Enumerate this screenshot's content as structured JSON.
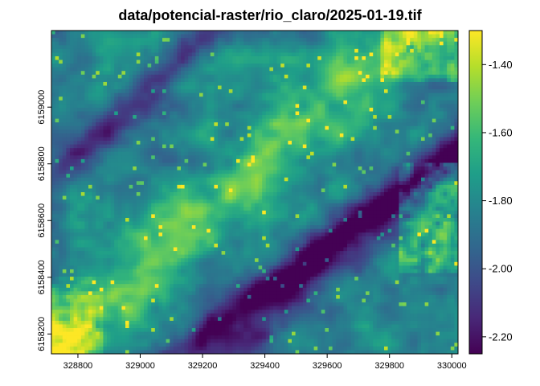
{
  "chart_data": {
    "type": "heatmap",
    "title": "data/potencial-raster/rio_claro/2025-01-19.tif",
    "xlabel": "",
    "ylabel": "",
    "xlim": [
      328715,
      330020
    ],
    "ylim": [
      6158130,
      6159270
    ],
    "x_ticks": [
      328800,
      329000,
      329200,
      329400,
      329600,
      329800,
      330000
    ],
    "y_ticks": [
      6158200,
      6158400,
      6158600,
      6158800,
      6159000
    ],
    "value_range": [
      -2.25,
      -1.3
    ],
    "legend": {
      "placement": "right",
      "ticks": [
        -1.4,
        -1.6,
        -1.8,
        -2.0,
        -2.2
      ],
      "tick_labels": [
        "-1.40",
        "-1.60",
        "-1.80",
        "-2.00",
        "-2.20"
      ],
      "colormap": [
        "#440154",
        "#482878",
        "#3e4a89",
        "#31688e",
        "#26828e",
        "#1f9e89",
        "#35b779",
        "#6ece58",
        "#b5de2b",
        "#fde725"
      ]
    },
    "grid": false
  }
}
